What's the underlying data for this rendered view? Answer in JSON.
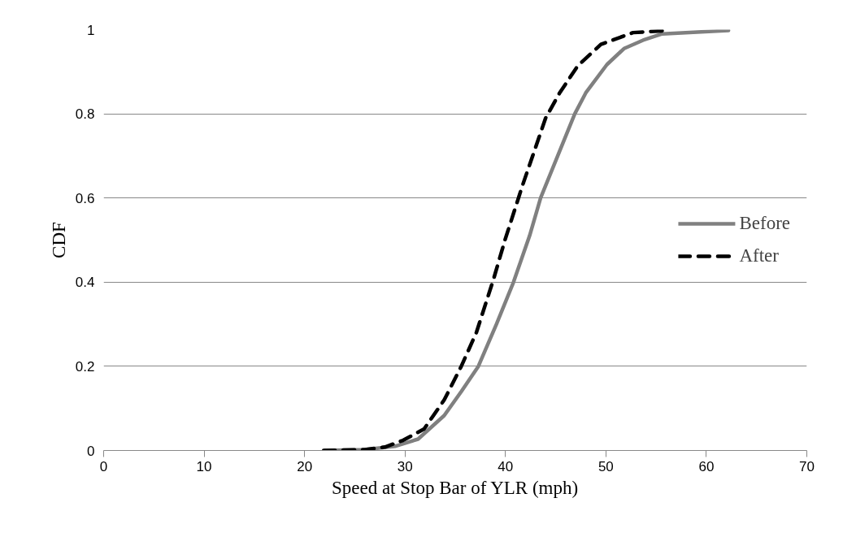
{
  "chart_data": {
    "type": "line",
    "xlabel": "Speed at Stop Bar of YLR (mph)",
    "ylabel": "CDF",
    "xlim": [
      0,
      70
    ],
    "xticks": [
      0,
      10,
      20,
      30,
      40,
      50,
      60,
      70
    ],
    "ylim": [
      0,
      1
    ],
    "yticks": [
      0,
      0.2,
      0.4,
      0.6,
      0.8,
      1
    ],
    "grid": "y",
    "legend": "right",
    "marker": "none",
    "series": [
      {
        "name": "Before",
        "color": "#808080",
        "line_style": "solid",
        "x": [
          22.0,
          26,
          29,
          31.3,
          33.9,
          35.6,
          37.3,
          39.1,
          40.8,
          42.4,
          43.5,
          45.2,
          46.9,
          48.0,
          50.1,
          51.8,
          53.7,
          55.6,
          62.2
        ],
        "values": [
          0,
          0.002,
          0.01,
          0.027,
          0.083,
          0.14,
          0.2,
          0.3,
          0.4,
          0.51,
          0.6,
          0.7,
          0.8,
          0.85,
          0.917,
          0.955,
          0.975,
          0.99,
          0.998
        ]
      },
      {
        "name": "After",
        "color": "#000000",
        "line_style": "dashed",
        "x": [
          21.9,
          26,
          28,
          29.8,
          31.9,
          33.9,
          35.6,
          37.1,
          38.8,
          39.95,
          41.7,
          44.0,
          45.4,
          47.2,
          49.5,
          52.7,
          56.1
        ],
        "values": [
          0,
          0.002,
          0.008,
          0.024,
          0.051,
          0.12,
          0.2,
          0.28,
          0.406,
          0.5,
          0.63,
          0.79,
          0.85,
          0.914,
          0.965,
          0.993,
          0.998
        ]
      }
    ]
  }
}
